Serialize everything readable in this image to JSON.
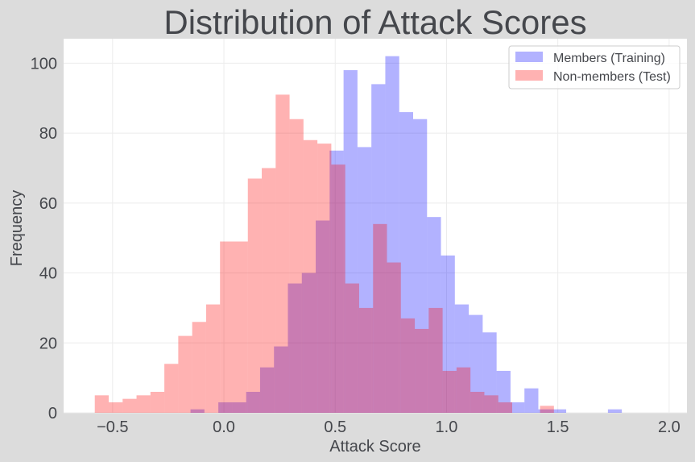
{
  "chart_data": {
    "type": "bar",
    "title": "Distribution of Attack Scores",
    "xlabel": "Attack Score",
    "ylabel": "Frequency",
    "xlim": [
      -0.72,
      2.08
    ],
    "ylim": [
      0,
      107
    ],
    "xticks": [
      -0.5,
      0.0,
      0.5,
      1.0,
      1.5,
      2.0
    ],
    "xtick_labels": [
      "−0.5",
      "0.0",
      "0.5",
      "1.0",
      "1.5",
      "2.0"
    ],
    "yticks": [
      0,
      20,
      40,
      60,
      80,
      100
    ],
    "ytick_labels": [
      "0",
      "20",
      "40",
      "60",
      "80",
      "100"
    ],
    "grid": true,
    "legend_position": "top-right",
    "bin_width": 0.0625,
    "series": [
      {
        "name": "Members (Training)",
        "color": "#0000ff",
        "opacity": 0.3,
        "bin_start": -0.15,
        "values": [
          1,
          0,
          3,
          3,
          6,
          13,
          19,
          37,
          40,
          55,
          75,
          98,
          76,
          94,
          102,
          86,
          84,
          56,
          45,
          31,
          28,
          23,
          12,
          3,
          7,
          1,
          1,
          0,
          0,
          0,
          1
        ]
      },
      {
        "name": "Non-members (Test)",
        "color": "#ff0000",
        "opacity": 0.3,
        "bin_start": -0.58,
        "values": [
          5,
          3,
          4,
          5,
          6,
          14,
          22,
          26,
          31,
          49,
          49,
          67,
          70,
          91,
          84,
          78,
          77,
          71,
          37,
          30,
          54,
          43,
          27,
          24,
          30,
          12,
          13,
          6,
          5,
          3,
          0,
          0,
          2
        ]
      }
    ]
  }
}
